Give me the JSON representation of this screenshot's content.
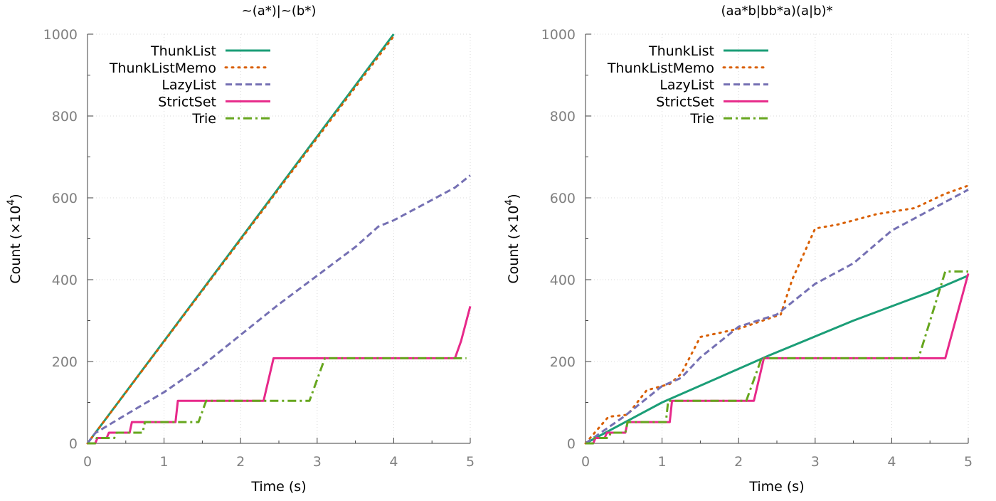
{
  "chart_data": [
    {
      "type": "line",
      "title": "~(a*)|~(b*)",
      "xlabel": "Time (s)",
      "ylabel": "Count (×10",
      "ylabel_sup": "4",
      "ylabel_close": ")",
      "xlim": [
        0,
        5
      ],
      "ylim": [
        0,
        1000
      ],
      "xticks": [
        "0",
        "1",
        "2",
        "3",
        "4",
        "5"
      ],
      "yticks": [
        "0",
        "200",
        "400",
        "600",
        "800",
        "1000"
      ],
      "grid": true,
      "legend_position": "top-left",
      "series": [
        {
          "name": "ThunkList",
          "color": "#1b9e77",
          "dash": "solid",
          "x": [
            0,
            4.0
          ],
          "y": [
            0,
            1000
          ]
        },
        {
          "name": "ThunkListMemo",
          "color": "#d95f02",
          "dash": "dotted",
          "x": [
            0,
            4.0
          ],
          "y": [
            0,
            995
          ]
        },
        {
          "name": "LazyList",
          "color": "#7570b3",
          "dash": "dashed",
          "x": [
            0,
            0.1,
            0.5,
            1.0,
            1.5,
            2.0,
            2.5,
            3.0,
            3.5,
            3.8,
            4.0,
            4.5,
            4.8,
            5.0
          ],
          "y": [
            0,
            25,
            70,
            125,
            190,
            265,
            340,
            410,
            480,
            530,
            545,
            595,
            625,
            655
          ]
        },
        {
          "name": "StrictSet",
          "color": "#e7298a",
          "dash": "solid",
          "x": [
            0,
            0.1,
            0.13,
            0.25,
            0.28,
            0.55,
            0.58,
            1.15,
            1.18,
            2.3,
            2.43,
            4.8,
            4.88,
            5.0
          ],
          "y": [
            0,
            0,
            13,
            13,
            26,
            26,
            52,
            52,
            104,
            104,
            208,
            208,
            250,
            335
          ]
        },
        {
          "name": "Trie",
          "color": "#66a61e",
          "dash": "dashdot",
          "x": [
            0,
            0.1,
            0.12,
            0.35,
            0.38,
            0.72,
            0.75,
            1.45,
            1.55,
            2.9,
            3.1,
            4.95
          ],
          "y": [
            0,
            0,
            13,
            13,
            26,
            26,
            52,
            52,
            104,
            104,
            208,
            208
          ]
        }
      ]
    },
    {
      "type": "line",
      "title": "(aa*b|bb*a)(a|b)*",
      "xlabel": "Time (s)",
      "ylabel": "Count (×10",
      "ylabel_sup": "4",
      "ylabel_close": ")",
      "xlim": [
        0,
        5
      ],
      "ylim": [
        0,
        1000
      ],
      "xticks": [
        "0",
        "1",
        "2",
        "3",
        "4",
        "5"
      ],
      "yticks": [
        "0",
        "200",
        "400",
        "600",
        "800",
        "1000"
      ],
      "grid": true,
      "legend_position": "top-left",
      "series": [
        {
          "name": "ThunkList",
          "color": "#1b9e77",
          "dash": "solid",
          "x": [
            0,
            1.0,
            2.4,
            3.5,
            4.5,
            5.0
          ],
          "y": [
            0,
            100,
            215,
            300,
            370,
            410
          ]
        },
        {
          "name": "ThunkListMemo",
          "color": "#d95f02",
          "dash": "dotted",
          "x": [
            0,
            0.3,
            0.55,
            0.8,
            1.1,
            1.25,
            1.5,
            2.0,
            2.55,
            2.7,
            3.0,
            3.3,
            3.8,
            4.3,
            4.7,
            5.0
          ],
          "y": [
            0,
            65,
            70,
            130,
            145,
            170,
            260,
            280,
            315,
            400,
            525,
            535,
            560,
            575,
            610,
            630
          ]
        },
        {
          "name": "LazyList",
          "color": "#7570b3",
          "dash": "dashed",
          "x": [
            0,
            0.5,
            1.0,
            1.25,
            1.5,
            2.0,
            2.5,
            3.0,
            3.5,
            4.0,
            4.5,
            5.0
          ],
          "y": [
            0,
            65,
            140,
            160,
            210,
            285,
            315,
            390,
            440,
            520,
            570,
            620
          ]
        },
        {
          "name": "StrictSet",
          "color": "#e7298a",
          "dash": "solid",
          "x": [
            0,
            0.1,
            0.13,
            0.25,
            0.28,
            0.52,
            0.55,
            1.1,
            1.13,
            2.2,
            2.33,
            4.7,
            5.0
          ],
          "y": [
            0,
            0,
            13,
            13,
            26,
            26,
            52,
            52,
            104,
            104,
            208,
            208,
            415
          ]
        },
        {
          "name": "Trie",
          "color": "#66a61e",
          "dash": "dashdot",
          "x": [
            0,
            0.1,
            0.12,
            0.3,
            0.33,
            0.52,
            0.55,
            1.05,
            1.08,
            2.1,
            2.3,
            4.35,
            4.7,
            5.0
          ],
          "y": [
            0,
            0,
            13,
            13,
            26,
            26,
            52,
            52,
            104,
            104,
            208,
            208,
            420,
            420
          ]
        }
      ]
    }
  ]
}
